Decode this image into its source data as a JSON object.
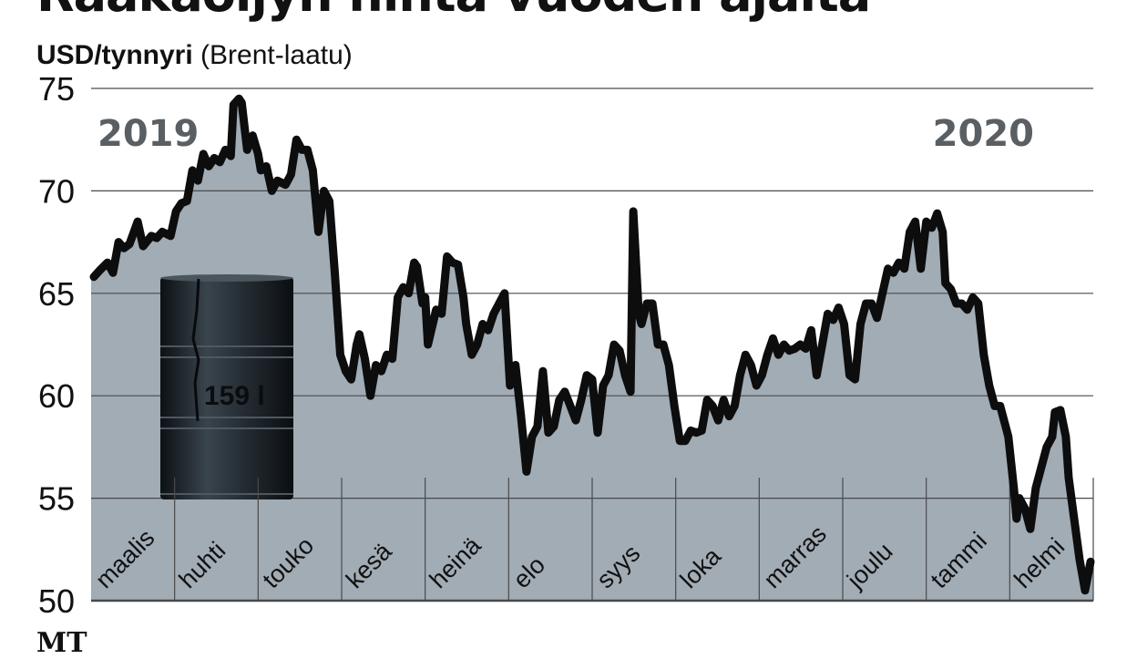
{
  "title": "Raakaöljyn hinta vuoden ajalta",
  "unit_label": "USD/tynnyri",
  "unit_note": "(Brent-laatu)",
  "source": "MT",
  "barrel_label": "159 l",
  "colors": {
    "fill": "#a1acb5",
    "line": "#0d0d0d",
    "grid": "#4a4a4a",
    "year": "#5a5f63",
    "barrel": "#1c2328"
  },
  "chart_data": {
    "type": "area",
    "title": "Raakaöljyn hinta vuoden ajalta",
    "ylabel": "USD/tynnyri (Brent-laatu)",
    "xlabel": "",
    "ylim": [
      50,
      75
    ],
    "xlim": [
      0,
      366
    ],
    "x_unit": "days from start of March 2019",
    "grid": true,
    "yticks": [
      "50",
      "55",
      "60",
      "65",
      "70",
      "75"
    ],
    "months": [
      "maalis",
      "huhti",
      "touko",
      "kesä",
      "heinä",
      "elo",
      "syys",
      "loka",
      "marras",
      "joulu",
      "tammi",
      "helmi"
    ],
    "year_labels": [
      {
        "label": "2019",
        "month": 0
      },
      {
        "label": "2020",
        "month": 10
      }
    ],
    "x": [
      1,
      3,
      6,
      8,
      10,
      12,
      14,
      17,
      19,
      22,
      24,
      26,
      29,
      31,
      33,
      35,
      37,
      39,
      41,
      43,
      45,
      47,
      49,
      51,
      52,
      54,
      55,
      57,
      59,
      61,
      62,
      64,
      66,
      68,
      71,
      73,
      75,
      77,
      79,
      81,
      83,
      85,
      87,
      89,
      91,
      93,
      95,
      97,
      98,
      100,
      102,
      104,
      106,
      108,
      110,
      112,
      114,
      116,
      118,
      119,
      121,
      122,
      123,
      126,
      128,
      130,
      132,
      134,
      136,
      137,
      139,
      141,
      143,
      145,
      147,
      149,
      151,
      153,
      155,
      157,
      159,
      161,
      163,
      165,
      167,
      169,
      171,
      173,
      175,
      177,
      179,
      181,
      183,
      185,
      187,
      189,
      191,
      193,
      195,
      197,
      198,
      200,
      201,
      203,
      205,
      207,
      209,
      211,
      213,
      215,
      217,
      219,
      221,
      223,
      225,
      227,
      229,
      231,
      233,
      235,
      237,
      239,
      241,
      243,
      245,
      247,
      249,
      251,
      253,
      255,
      257,
      259,
      261,
      263,
      265,
      267,
      269,
      271,
      273,
      275,
      277,
      279,
      281,
      283,
      285,
      287,
      289,
      291,
      293,
      295,
      297,
      299,
      301,
      303,
      305,
      307,
      309,
      311,
      312,
      314,
      316,
      318,
      320,
      322,
      324,
      326,
      328,
      330,
      332,
      334,
      335,
      337,
      338,
      339,
      341,
      343,
      345,
      347,
      349,
      351,
      352,
      354,
      356,
      357,
      359,
      361,
      363,
      365
    ],
    "values": [
      65.8,
      66.1,
      66.5,
      66.0,
      67.5,
      67.2,
      67.4,
      68.5,
      67.3,
      67.8,
      67.7,
      68.0,
      67.8,
      69.0,
      69.4,
      69.5,
      71.0,
      70.5,
      71.8,
      71.2,
      71.6,
      71.4,
      72.0,
      71.7,
      74.2,
      74.5,
      74.3,
      72.0,
      72.7,
      71.8,
      71.0,
      71.2,
      70.0,
      70.5,
      70.3,
      70.8,
      72.5,
      72.0,
      72.0,
      71.0,
      68.0,
      70.0,
      69.5,
      66.0,
      62.0,
      61.2,
      60.8,
      62.5,
      63.0,
      61.8,
      60.0,
      61.5,
      61.2,
      62.0,
      61.8,
      64.8,
      65.3,
      65.0,
      66.5,
      66.3,
      64.5,
      64.8,
      62.5,
      64.2,
      64.0,
      66.8,
      66.5,
      66.4,
      64.8,
      63.5,
      62.0,
      62.5,
      63.5,
      63.2,
      64.0,
      64.5,
      65.0,
      60.5,
      61.5,
      59.0,
      56.3,
      58.0,
      58.5,
      61.2,
      58.2,
      58.5,
      59.8,
      60.2,
      59.5,
      58.8,
      59.8,
      61.0,
      60.8,
      58.2,
      60.5,
      61.0,
      62.5,
      62.2,
      61.0,
      60.2,
      69.0,
      64.0,
      63.5,
      64.5,
      64.5,
      62.5,
      62.5,
      61.5,
      59.5,
      57.8,
      57.8,
      58.3,
      58.2,
      58.3,
      59.8,
      59.5,
      58.8,
      59.8,
      59.0,
      59.5,
      61.0,
      62.0,
      61.5,
      60.5,
      61.0,
      62.0,
      62.8,
      62.0,
      62.5,
      62.2,
      62.3,
      62.5,
      62.3,
      63.2,
      61.0,
      62.5,
      64.0,
      63.7,
      64.3,
      63.5,
      61.0,
      60.8,
      63.5,
      64.5,
      64.5,
      63.8,
      65.0,
      66.2,
      66.0,
      66.5,
      66.2,
      68.0,
      68.5,
      66.2,
      68.5,
      68.2,
      68.9,
      68.0,
      65.5,
      65.2,
      64.5,
      64.5,
      64.2,
      64.8,
      64.5,
      62.0,
      60.5,
      59.5,
      59.5,
      58.5,
      58.0,
      55.5,
      54.0,
      55.0,
      54.5,
      53.5,
      55.5,
      56.5,
      57.5,
      58.0,
      59.2,
      59.3,
      58.0,
      56.0,
      54.0,
      52.0,
      50.5,
      51.9
    ]
  }
}
